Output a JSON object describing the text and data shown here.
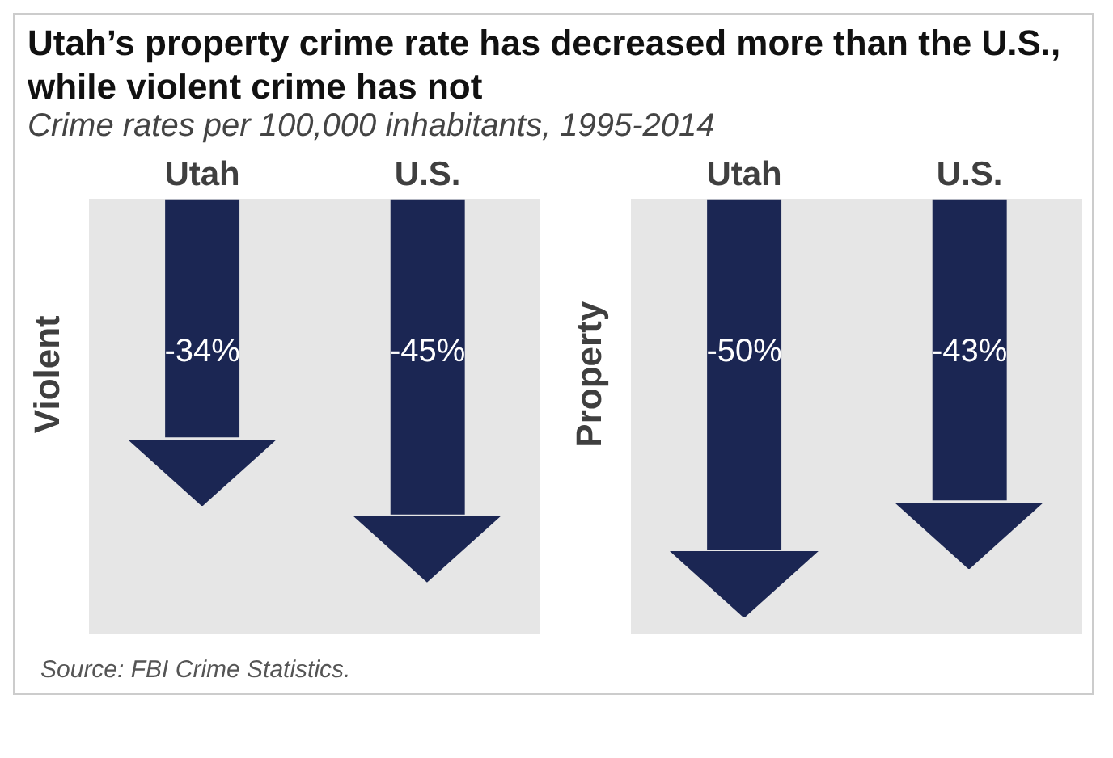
{
  "chart_data": [
    {
      "type": "bar",
      "title": "Utah’s property crime rate has decreased more than the U.S., while violent crime has not",
      "subtitle": "Crime rates per 100,000 inhabitants, 1995-2014",
      "ylabel": "Violent",
      "categories": [
        "Utah",
        "U.S."
      ],
      "values": [
        -34,
        -45
      ],
      "value_labels": [
        "-34%",
        "-45%"
      ],
      "color": "#1b2653",
      "tick_labels": "x",
      "grid": false,
      "legend": false
    },
    {
      "type": "bar",
      "ylabel": "Property",
      "categories": [
        "Utah",
        "U.S."
      ],
      "values": [
        -50,
        -43
      ],
      "value_labels": [
        "-50%",
        "-43%"
      ],
      "color": "#1b2653",
      "tick_labels": "x",
      "grid": false,
      "legend": false,
      "annotations": [
        "Source: FBI Crime Statistics."
      ]
    }
  ]
}
